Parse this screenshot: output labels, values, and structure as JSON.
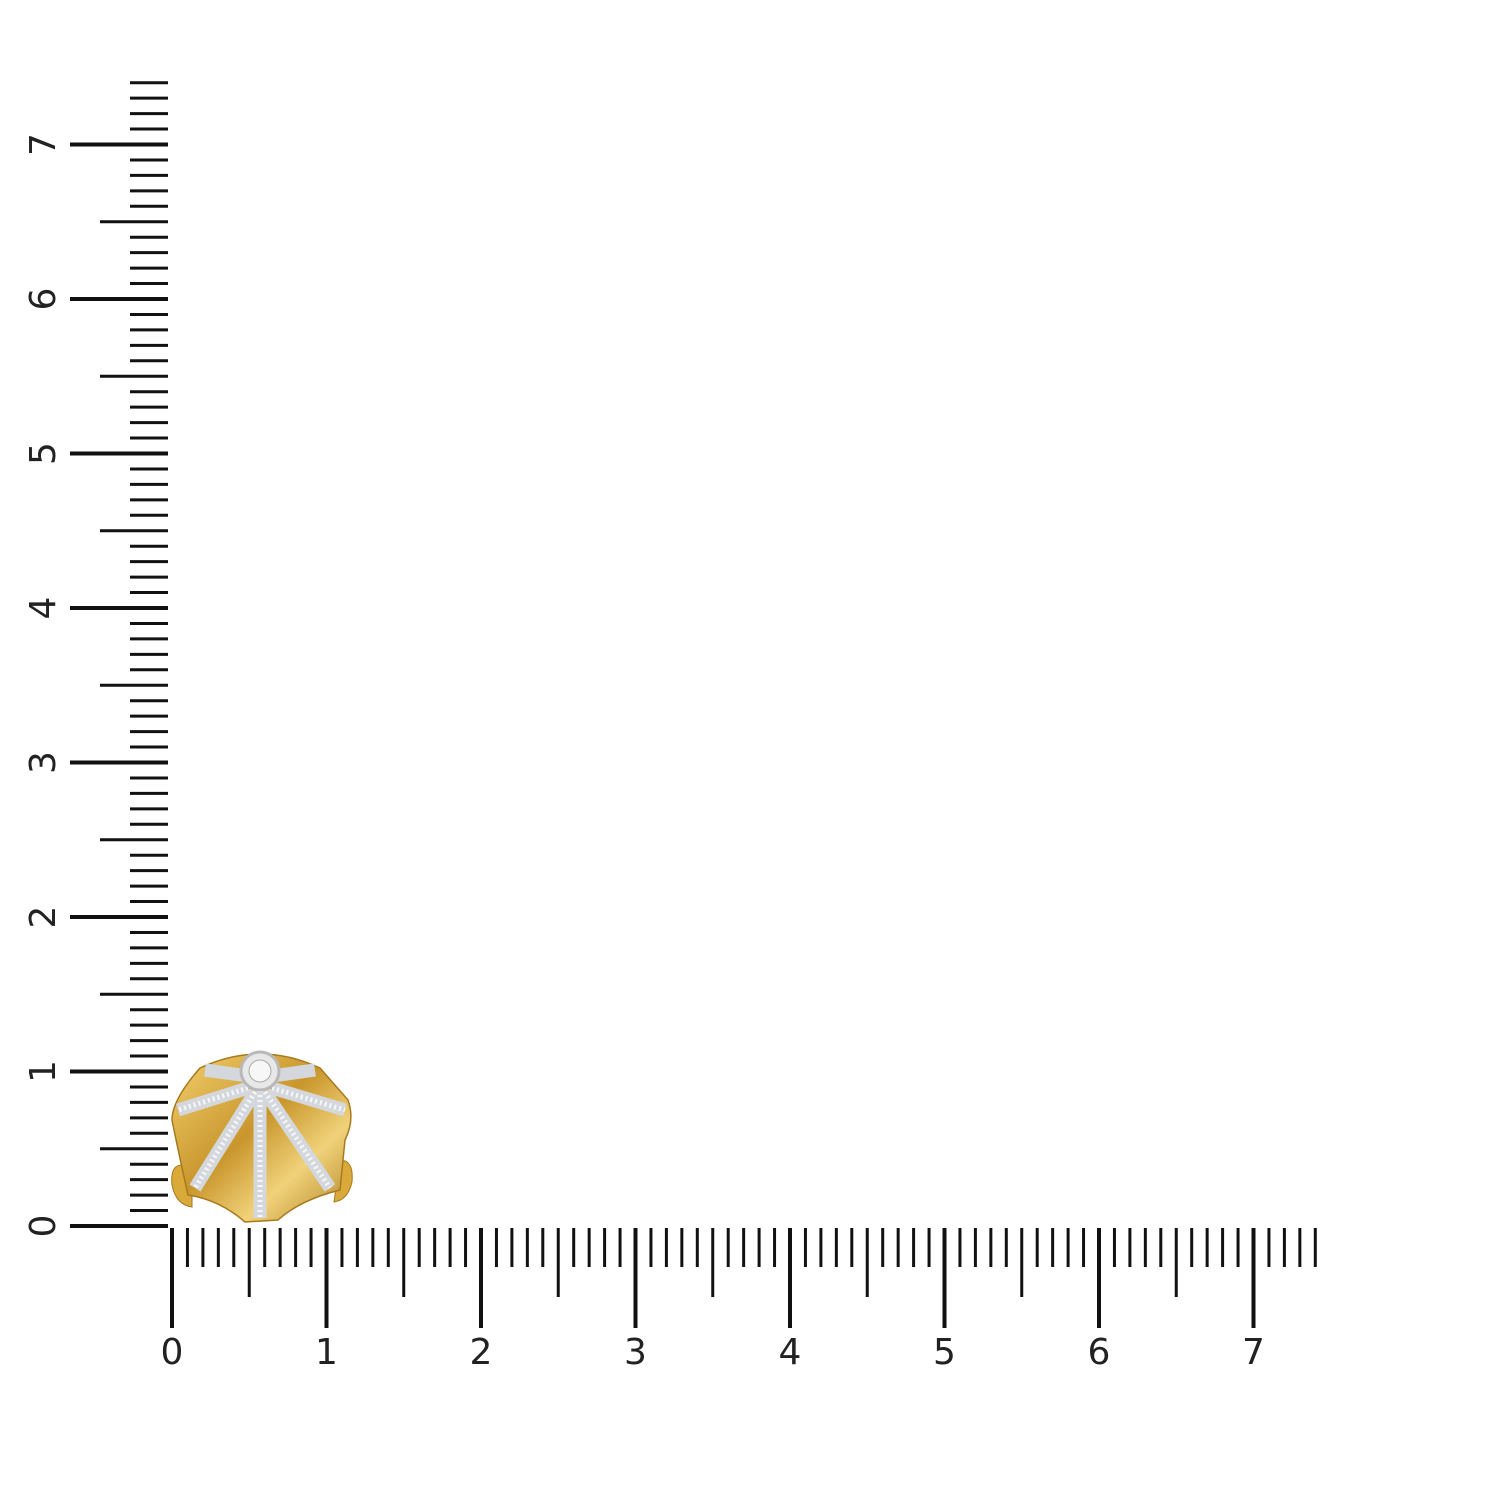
{
  "rulers": {
    "horizontal": {
      "labels": [
        "0",
        "1",
        "2",
        "3",
        "4",
        "5",
        "6",
        "7"
      ],
      "max": 7.4,
      "step": 0.1
    },
    "vertical": {
      "labels": [
        "0",
        "1",
        "2",
        "3",
        "4",
        "5",
        "6",
        "7"
      ],
      "max": 7.4,
      "step": 0.1
    }
  },
  "product": {
    "type": "earring",
    "metal_color": "#d9a93a",
    "stone_color": "#e6e8ec"
  }
}
